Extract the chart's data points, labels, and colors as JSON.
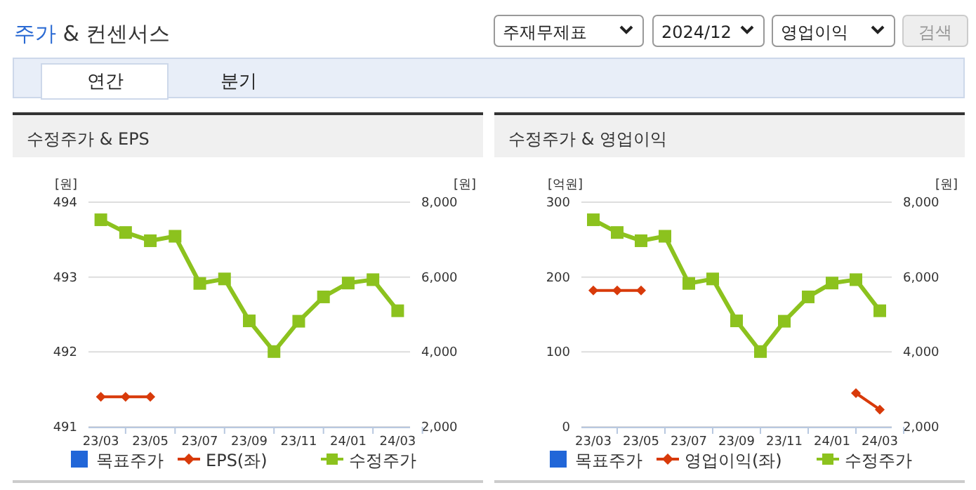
{
  "chart_data": [
    {
      "type": "other",
      "title": "주가 & 컨센서스",
      "annotations": [
        "주재무제표",
        "2024/12",
        "영업이익",
        "검색",
        "연간",
        "분기"
      ]
    },
    {
      "type": "line",
      "title": "수정주가 & EPS",
      "ylabel": "[원]",
      "y2label": "[원]",
      "categories": [
        "23/03",
        null,
        "23/05",
        null,
        "23/07",
        null,
        "23/09",
        null,
        "23/11",
        null,
        "24/01",
        null,
        "24/03"
      ],
      "ylim": [
        491,
        494
      ],
      "yticks": [
        491,
        492,
        493,
        494
      ],
      "y2lim": [
        2000,
        8000
      ],
      "y2ticks": [
        {
          "value": 2000,
          "label": "2,000"
        },
        {
          "value": 4000,
          "label": "4,000"
        },
        {
          "value": 6000,
          "label": "6,000"
        },
        {
          "value": 8000,
          "label": "8,000"
        }
      ],
      "grid": "y",
      "legend": "bottom",
      "series": [
        {
          "name": "목표주가",
          "type": "scatter",
          "marker": "square",
          "color": "#2166d8",
          "values": [
            null,
            null,
            null,
            null,
            null,
            null,
            null,
            null,
            null,
            null,
            null,
            null,
            null
          ]
        },
        {
          "name": "EPS(좌)",
          "type": "line",
          "marker": "diamond",
          "color": "#d83a0a",
          "values": [
            491.4,
            491.4,
            491.4,
            null,
            null,
            null,
            null,
            null,
            null,
            null,
            null,
            null,
            null
          ]
        },
        {
          "name": "수정주가",
          "type": "line",
          "marker": "square",
          "axis": "y2",
          "color": "#8cc21e",
          "values": [
            7530,
            7190,
            6970,
            7090,
            5830,
            5950,
            4830,
            4010,
            4820,
            5470,
            5840,
            5930,
            5100
          ]
        }
      ]
    },
    {
      "type": "line",
      "title": "수정주가 & 영업이익",
      "ylabel": "[억원]",
      "y2label": "[원]",
      "categories": [
        "23/03",
        null,
        "23/05",
        null,
        "23/07",
        null,
        "23/09",
        null,
        "23/11",
        null,
        "24/01",
        null,
        "24/03"
      ],
      "ylim": [
        0,
        300
      ],
      "yticks": [
        0,
        100,
        200,
        300
      ],
      "y2lim": [
        2000,
        8000
      ],
      "y2ticks": [
        {
          "value": 2000,
          "label": "2,000"
        },
        {
          "value": 4000,
          "label": "4,000"
        },
        {
          "value": 6000,
          "label": "6,000"
        },
        {
          "value": 8000,
          "label": "8,000"
        }
      ],
      "grid": "y",
      "legend": "bottom",
      "series": [
        {
          "name": "목표주가",
          "type": "scatter",
          "marker": "square",
          "color": "#2166d8",
          "values": [
            null,
            null,
            null,
            null,
            null,
            null,
            null,
            null,
            null,
            null,
            null,
            null,
            null
          ]
        },
        {
          "name": "영업이익(좌)",
          "type": "line",
          "marker": "diamond",
          "color": "#d83a0a",
          "values": [
            182,
            182,
            182,
            null,
            null,
            null,
            null,
            null,
            null,
            null,
            null,
            45,
            23
          ]
        },
        {
          "name": "수정주가",
          "type": "line",
          "marker": "square",
          "axis": "y2",
          "color": "#8cc21e",
          "values": [
            7530,
            7190,
            6970,
            7090,
            5830,
            5950,
            4830,
            4010,
            4820,
            5470,
            5840,
            5930,
            5100
          ]
        }
      ]
    }
  ]
}
